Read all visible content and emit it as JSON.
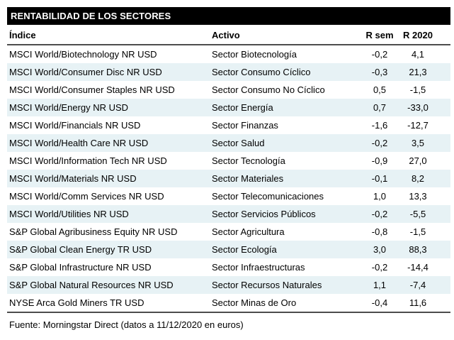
{
  "title": "RENTABILIDAD DE LOS SECTORES",
  "table": {
    "columns": [
      "Índice",
      "Activo",
      "R sem",
      "R 2020"
    ],
    "rows": [
      [
        "MSCI World/Biotechnology NR USD",
        "Sector Biotecnología",
        "-0,2",
        "4,1"
      ],
      [
        "MSCI World/Consumer Disc NR USD",
        "Sector Consumo Cíclico",
        "-0,3",
        "21,3"
      ],
      [
        "MSCI World/Consumer Staples NR USD",
        "Sector Consumo No Cíclico",
        "0,5",
        "-1,5"
      ],
      [
        "MSCI World/Energy NR USD",
        "Sector Energía",
        "0,7",
        "-33,0"
      ],
      [
        "MSCI World/Financials NR USD",
        "Sector Finanzas",
        "-1,6",
        "-12,7"
      ],
      [
        "MSCI World/Health Care NR USD",
        "Sector Salud",
        "-0,2",
        "3,5"
      ],
      [
        "MSCI World/Information Tech NR USD",
        "Sector Tecnología",
        "-0,9",
        "27,0"
      ],
      [
        "MSCI World/Materials NR USD",
        "Sector Materiales",
        "-0,1",
        "8,2"
      ],
      [
        "MSCI World/Comm Services NR USD",
        "Sector Telecomunicaciones",
        "1,0",
        "13,3"
      ],
      [
        "MSCI World/Utilities NR USD",
        "Sector Servicios Públicos",
        "-0,2",
        "-5,5"
      ],
      [
        "S&P Global Agribusiness Equity NR USD",
        "Sector Agricultura",
        "-0,8",
        "-1,5"
      ],
      [
        "S&P Global Clean Energy TR USD",
        "Sector Ecología",
        "3,0",
        "88,3"
      ],
      [
        "S&P Global Infrastructure NR USD",
        "Sector Infraestructuras",
        "-0,2",
        "-14,4"
      ],
      [
        "S&P Global Natural Resources NR USD",
        "Sector Recursos Naturales",
        "1,1",
        "-7,4"
      ],
      [
        "NYSE Arca Gold Miners TR USD",
        "Sector Minas de Oro",
        "-0,4",
        "11,6"
      ]
    ]
  },
  "footer": "Fuente: Morningstar Direct (datos a 11/12/2020 en euros)",
  "colors": {
    "title_bg": "#000000",
    "title_text": "#ffffff",
    "row_alt_bg": "#e7f2f5",
    "divider": "#4d4d4d"
  }
}
